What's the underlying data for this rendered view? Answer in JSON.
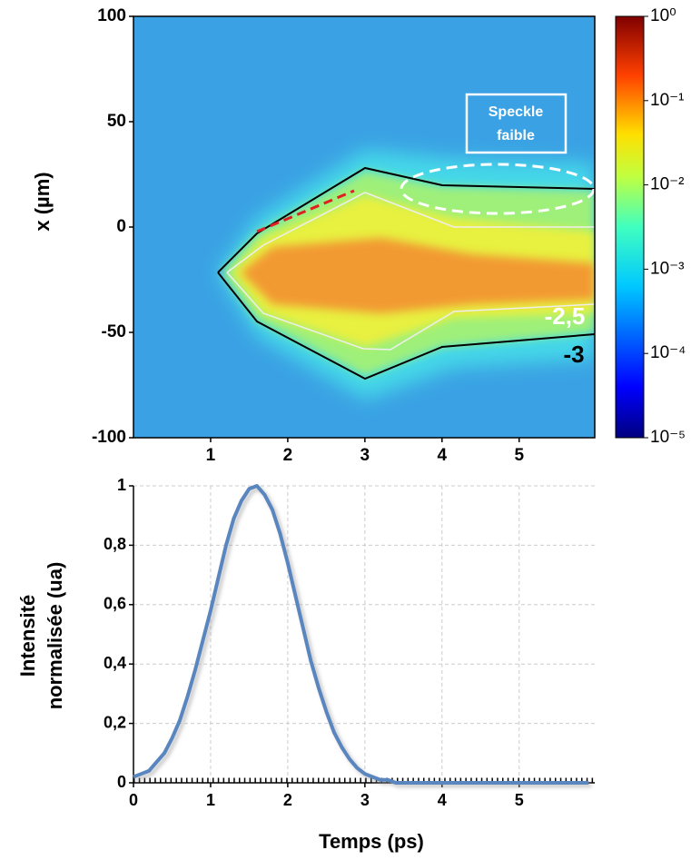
{
  "chart_data": [
    {
      "type": "heatmap",
      "ylabel": "x (µm)",
      "xlim": [
        0,
        5.98
      ],
      "xticks": [
        1,
        2,
        3,
        4,
        5
      ],
      "ylim": [
        -100,
        100
      ],
      "yticks": [
        -100,
        -50,
        0,
        50,
        100
      ],
      "colorbar": {
        "lim": [
          1e-05,
          1
        ],
        "log": true,
        "colormap": "jet",
        "ticks": [
          {
            "value": 1,
            "label": "10⁰"
          },
          {
            "value": 0.1,
            "label": "10⁻¹"
          },
          {
            "value": 0.01,
            "label": "10⁻²"
          },
          {
            "value": 0.001,
            "label": "10⁻³"
          },
          {
            "value": 0.0001,
            "label": "10⁻⁴"
          },
          {
            "value": 1e-05,
            "label": "10⁻⁵"
          }
        ]
      },
      "annotations": {
        "speckle": [
          "Speckle",
          "faible"
        ],
        "contours": [
          "-2,5",
          "-3"
        ]
      }
    },
    {
      "type": "line",
      "xlabel": "Temps (ps)",
      "ylabel": [
        "Intensité",
        "normalisée (ua)"
      ],
      "xlim": [
        0,
        5.98
      ],
      "xticks": [
        0,
        1,
        2,
        3,
        4,
        5
      ],
      "ylim": [
        0,
        1
      ],
      "yticks": [
        0,
        {
          "value": 0.2,
          "label": "0,2"
        },
        {
          "value": 0.4,
          "label": "0,4"
        },
        {
          "value": 0.6,
          "label": "0,6"
        },
        {
          "value": 0.8,
          "label": "0,8"
        },
        1
      ],
      "grid": true,
      "color": "#5a86bf",
      "x": [
        0,
        0.1,
        0.2,
        0.3,
        0.4,
        0.5,
        0.6,
        0.7,
        0.8,
        0.9,
        1.0,
        1.1,
        1.2,
        1.3,
        1.4,
        1.5,
        1.6,
        1.7,
        1.8,
        1.9,
        2.0,
        2.1,
        2.2,
        2.3,
        2.4,
        2.5,
        2.6,
        2.7,
        2.8,
        2.9,
        3.0,
        3.1,
        3.2,
        3.3,
        3.4,
        3.5,
        4,
        5,
        5.9
      ],
      "values": [
        0.02,
        0.03,
        0.04,
        0.07,
        0.1,
        0.15,
        0.21,
        0.29,
        0.38,
        0.48,
        0.58,
        0.69,
        0.8,
        0.89,
        0.95,
        0.99,
        1.0,
        0.97,
        0.92,
        0.84,
        0.74,
        0.63,
        0.52,
        0.41,
        0.32,
        0.24,
        0.17,
        0.12,
        0.08,
        0.05,
        0.03,
        0.02,
        0.01,
        0.01,
        0,
        0,
        0,
        0,
        0
      ]
    }
  ]
}
